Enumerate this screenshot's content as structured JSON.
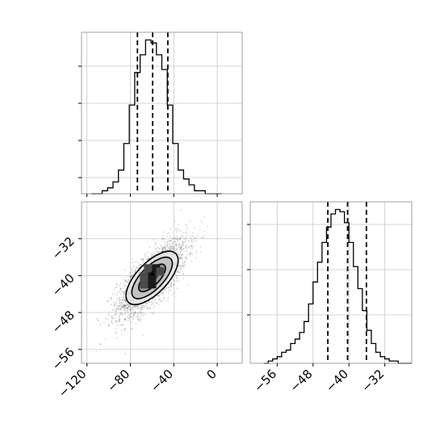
{
  "chart_data": [
    {
      "panel": "x-marginal",
      "type": "histogram",
      "xlim": [
        -125,
        23
      ],
      "bin_edges": [
        -116,
        -111,
        -106,
        -101,
        -96,
        -91,
        -86,
        -81,
        -76,
        -71,
        -66,
        -61,
        -56,
        -51,
        -46,
        -41,
        -36,
        -31,
        -26,
        -21,
        -16,
        -11,
        -6,
        -1,
        4
      ],
      "counts": [
        0,
        0,
        1,
        2,
        4,
        8,
        17,
        30,
        41,
        47,
        52,
        51,
        47,
        42,
        30,
        17,
        8,
        5,
        3,
        1,
        1,
        0,
        0,
        0
      ],
      "quantiles": [
        -73.5,
        -59.5,
        -45.5
      ],
      "grid": true
    },
    {
      "panel": "joint",
      "type": "scatter",
      "xlim": [
        -125,
        23
      ],
      "ylim": [
        -59,
        -24
      ],
      "x_ticks": [
        -120,
        -80,
        -40,
        0
      ],
      "y_ticks": [
        -32,
        -40,
        -48,
        -56
      ],
      "center": [
        -60,
        -40.5
      ],
      "scatter_sd": [
        16,
        4.2
      ],
      "correlation": 0.75,
      "n_points": 2600,
      "grid": true
    },
    {
      "panel": "y-marginal",
      "type": "histogram",
      "xlim": [
        -62,
        -26
      ],
      "x_ticks": [
        -56,
        -48,
        -40,
        -32
      ],
      "bin_edges": [
        -59,
        -58,
        -57,
        -56,
        -55,
        -54,
        -53,
        -52,
        -51,
        -50,
        -49,
        -48,
        -47,
        -46,
        -45,
        -44,
        -43,
        -42,
        -41,
        -40,
        -39,
        -38,
        -37,
        -36,
        -35,
        -34,
        -33,
        -32,
        -31,
        -30,
        -29,
        -28,
        -27,
        -26
      ],
      "counts": [
        0,
        1,
        2,
        3,
        5,
        6,
        9,
        11,
        14,
        19,
        27,
        37,
        46,
        55,
        62,
        68,
        70,
        69,
        64,
        55,
        44,
        34,
        24,
        15,
        9,
        5,
        3,
        2,
        1,
        1,
        0,
        0,
        0
      ],
      "quantiles": [
        -44.7,
        -40.3,
        -36.1
      ],
      "grid": true
    }
  ]
}
